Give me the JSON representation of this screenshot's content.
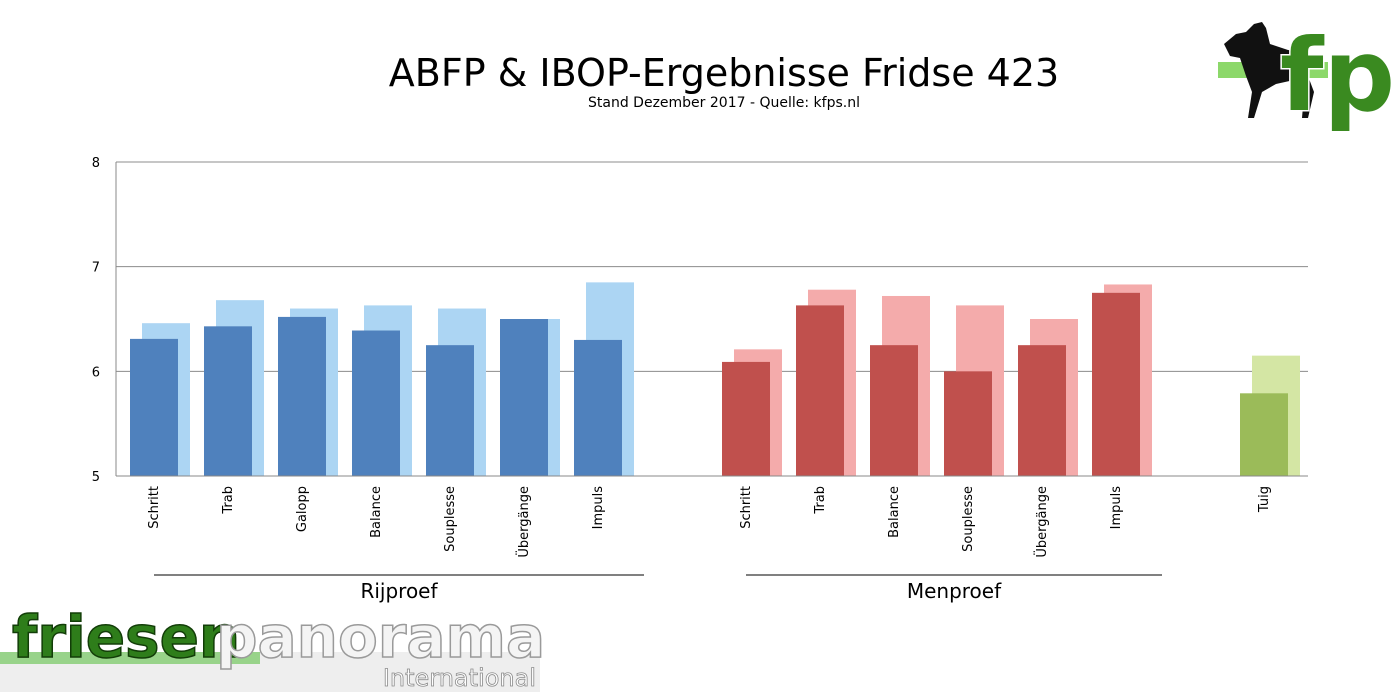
{
  "chart_data": {
    "type": "bar",
    "title": "ABFP & IBOP-Ergebnisse Fridse 423",
    "subtitle": "Stand Dezember 2017 - Quelle: kfps.nl",
    "ylim": [
      5,
      8
    ],
    "yticks": [
      5,
      6,
      7,
      8
    ],
    "grid": true,
    "groups": [
      {
        "label": "Rijproef",
        "colors": {
          "front": "#4f81bd",
          "back": "#acd5f3"
        },
        "categories": [
          "Schritt",
          "Trab",
          "Galopp",
          "Balance",
          "Souplesse",
          "Übergänge",
          "Impuls"
        ],
        "values_front": [
          6.31,
          6.43,
          6.52,
          6.39,
          6.25,
          6.5,
          6.3
        ],
        "values_back": [
          6.46,
          6.68,
          6.6,
          6.63,
          6.6,
          6.5,
          6.85
        ]
      },
      {
        "label": "Menproef",
        "colors": {
          "front": "#c0504d",
          "back": "#f4abab"
        },
        "categories": [
          "Schritt",
          "Trab",
          "Balance",
          "Souplesse",
          "Übergänge",
          "Impuls"
        ],
        "values_front": [
          6.09,
          6.63,
          6.25,
          6.0,
          6.25,
          6.75
        ],
        "values_back": [
          6.21,
          6.78,
          6.72,
          6.63,
          6.5,
          6.83
        ]
      },
      {
        "label": "",
        "colors": {
          "front": "#9bbb59",
          "back": "#d4e6a4"
        },
        "categories": [
          "Tuig"
        ],
        "values_front": [
          5.79
        ],
        "values_back": [
          6.15
        ]
      }
    ]
  },
  "logos": {
    "top_right": {
      "icon": "horse-fp-logo-icon",
      "text": "fp"
    },
    "bottom_left": {
      "part1": "friesen",
      "part2": "panorama",
      "sub": "International",
      "colors": {
        "green": "#2e7d1a",
        "gray": "#e8e8e8"
      }
    }
  }
}
